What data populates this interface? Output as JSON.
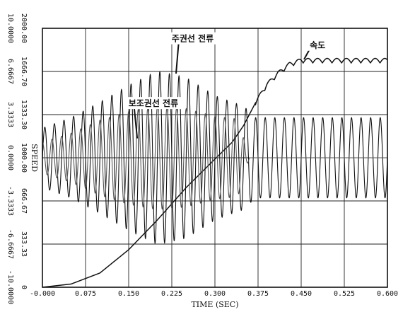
{
  "chart_data": {
    "type": "line",
    "xlabel": "TIME (SEC)",
    "ylabel": "SPEED",
    "xlim": [
      0,
      0.6
    ],
    "x_ticks": [
      "-0.000",
      "0.075",
      "0.150",
      "0.225",
      "0.300",
      "0.375",
      "0.450",
      "0.525",
      "0.600"
    ],
    "y_left_outer_ticks": [
      "-10.0000",
      "-6.6667",
      "-3.3333",
      "0.0000",
      "3.3333",
      "6.6667",
      "10.0000"
    ],
    "y_left_inner_ticks": [
      "0",
      "333.33",
      "666.67",
      "1000.00",
      "1333.30",
      "1666.70",
      "2000.00"
    ],
    "grid": true,
    "annotations": [
      {
        "text": "주권선 전류",
        "x": 0.21,
        "y": 1920
      },
      {
        "text": "보조권선 전류",
        "x": 0.14,
        "y": 1420
      },
      {
        "text": "속도",
        "x": 0.47,
        "y": 1850
      }
    ],
    "series": [
      {
        "kind": "speed",
        "color": "#111111",
        "x": [
          0,
          0.05,
          0.1,
          0.15,
          0.2,
          0.25,
          0.3,
          0.33,
          0.35,
          0.37,
          0.39,
          0.41,
          0.43,
          0.45,
          0.6
        ],
        "y": [
          0,
          25,
          110,
          290,
          520,
          770,
          990,
          1120,
          1250,
          1420,
          1560,
          1650,
          1720,
          1750,
          1750
        ],
        "ripple_start": 0.37,
        "ripple_amplitude": 35,
        "ripple_period": 0.0167
      },
      {
        "kind": "current",
        "color": "#111111",
        "frequency_hz": 60,
        "phase": 0,
        "envelope_x": [
          0,
          0.05,
          0.1,
          0.15,
          0.2,
          0.25,
          0.3,
          0.33,
          0.35,
          0.37,
          0.6
        ],
        "envelope_amp": [
          2.3,
          3.1,
          4.3,
          5.6,
          6.7,
          6.2,
          4.8,
          4.3,
          4.0,
          3.1,
          3.1
        ]
      },
      {
        "kind": "current",
        "color": "#555555",
        "frequency_hz": 60,
        "phase": 1.5708,
        "envelope_x": [
          0,
          0.05,
          0.1,
          0.15,
          0.2,
          0.25,
          0.3,
          0.34,
          0.36,
          0.6
        ],
        "envelope_amp": [
          1.2,
          1.9,
          2.9,
          3.6,
          4.0,
          3.8,
          3.2,
          3.0,
          0.0,
          0.0
        ]
      }
    ]
  }
}
